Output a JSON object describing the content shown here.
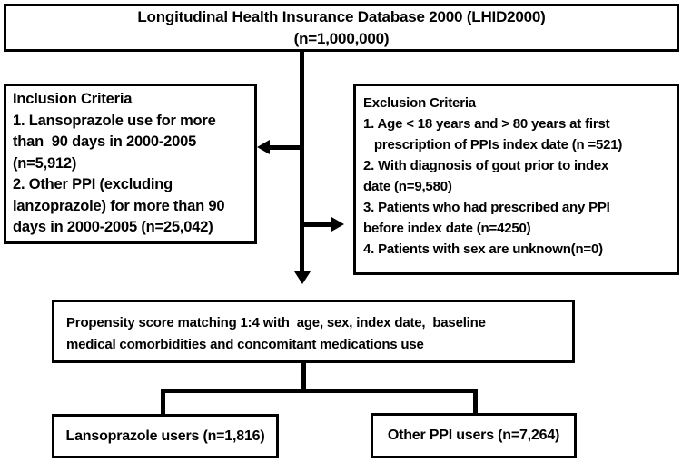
{
  "figure": {
    "type": "flow-diagram",
    "description": "Patient selection flowchart from the Longitudinal Health Insurance Database 2000"
  },
  "boxes": {
    "database": {
      "lines": [
        "Longitudinal Health Insurance Database 2000 (LHID2000)",
        "(n=1,000,000)"
      ]
    },
    "inclusion": {
      "lines": [
        "Inclusion Criteria",
        "1. Lansoprazole use for more",
        "than  90 days in 2000-2005",
        "(n=5,912)",
        "2. Other PPI (excluding",
        "lanzoprazole) for more than 90",
        "days in 2000-2005 (n=25,042)"
      ]
    },
    "exclusion": {
      "lines": [
        "Exclusion Criteria",
        "1. Age < 18 years and > 80 years at first",
        "   prescription of PPIs index date (n =521)",
        "2. With diagnosis of gout prior to index",
        "date (n=9,580)",
        "3. Patients who had prescribed any PPI",
        "before index date (n=4250)",
        "4. Patients with sex are unknown(n=0)"
      ]
    },
    "matching": {
      "lines": [
        "Propensity score matching 1:4 with  age, sex, index date,  baseline",
        "medical comorbidities and concomitant medications use"
      ]
    },
    "group_left": {
      "label": "Lansoprazole users (n=1,816)"
    },
    "group_right": {
      "label": "Other PPI users (n=7,264)"
    }
  },
  "edges": [
    {
      "from": "database",
      "to": "matching",
      "style": "arrow-down"
    },
    {
      "from": "database-matching-flow",
      "to": "inclusion",
      "style": "arrow-left"
    },
    {
      "from": "database-matching-flow",
      "to": "exclusion",
      "style": "arrow-right"
    },
    {
      "from": "matching",
      "to": "group_left",
      "style": "line"
    },
    {
      "from": "matching",
      "to": "group_right",
      "style": "line"
    }
  ],
  "colors": {
    "line": "#000000",
    "box_border": "#000000",
    "text": "#000000",
    "background": "#ffffff"
  }
}
